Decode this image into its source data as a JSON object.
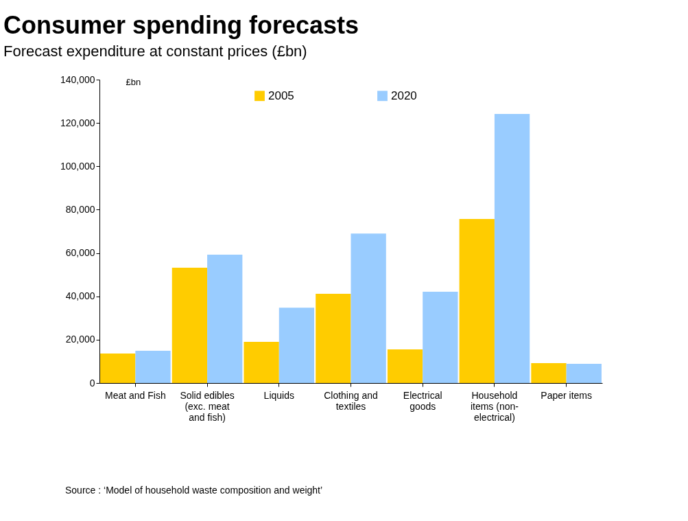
{
  "chart_data": {
    "type": "bar",
    "title": "Consumer spending forecasts",
    "subtitle": "Forecast expenditure at constant prices (£bn)",
    "ylabel": "£bn",
    "categories": [
      "Meat and Fish",
      "Solid edibles (exc. meat and fish)",
      "Liquids",
      "Clothing and textiles",
      "Electrical goods",
      "Household items (non-electrical)",
      "Paper items"
    ],
    "series": [
      {
        "name": "2005",
        "color": "#ffcc00",
        "values": [
          13600,
          53200,
          19000,
          41200,
          15500,
          75700,
          9200
        ]
      },
      {
        "name": "2020",
        "color": "#99ccff",
        "values": [
          14900,
          59200,
          34800,
          69000,
          42100,
          124200,
          8900
        ]
      }
    ],
    "ylim": [
      0,
      140000
    ],
    "yticks": [
      0,
      {
        "value": 20000,
        "label": "20,000"
      },
      {
        "value": 40000,
        "label": "40,000"
      },
      {
        "value": 60000,
        "label": "60,000"
      },
      {
        "value": 80000,
        "label": "80,000"
      },
      {
        "value": 100000,
        "label": "100,000"
      },
      {
        "value": 120000,
        "label": "120,000"
      },
      {
        "value": 140000,
        "label": "140,000"
      }
    ],
    "grid": false,
    "legend": "top",
    "annotations": [
      "Source : ‘Model of household waste composition and weight’"
    ]
  }
}
